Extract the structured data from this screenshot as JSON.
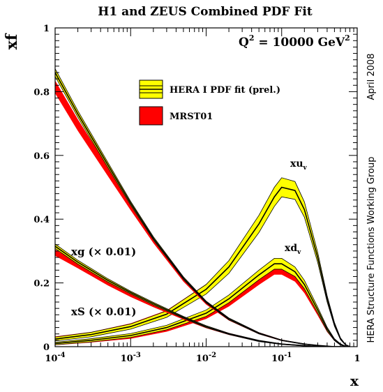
{
  "chart_data": {
    "type": "line",
    "title": "H1 and ZEUS Combined PDF Fit",
    "xlabel": "x",
    "ylabel": "xf",
    "xscale": "log",
    "xlim": [
      0.0001,
      1
    ],
    "ylim": [
      0,
      1
    ],
    "x_ticks": [
      {
        "value": 0.0001,
        "base": "10",
        "exp": "-4"
      },
      {
        "value": 0.001,
        "base": "10",
        "exp": "-3"
      },
      {
        "value": 0.01,
        "base": "10",
        "exp": "-2"
      },
      {
        "value": 0.1,
        "base": "10",
        "exp": "-1"
      },
      {
        "value": 1,
        "base": "1",
        "exp": ""
      }
    ],
    "y_ticks": [
      "0",
      "0.2",
      "0.4",
      "0.6",
      "0.8",
      "1"
    ],
    "y_tick_values": [
      0,
      0.2,
      0.4,
      0.6,
      0.8,
      1
    ],
    "annotation_q2": {
      "prefix": "Q",
      "sup1": "2",
      "mid": " = 10000 GeV",
      "sup2": "2"
    },
    "legend": {
      "placement": "upper-center",
      "entries": [
        {
          "label": "HERA I PDF fit (prel.)",
          "color": "#ffff00"
        },
        {
          "label": "MRST01",
          "color": "#ff0000"
        }
      ]
    },
    "curve_labels": {
      "xuv": {
        "base": "xu",
        "sub": "v"
      },
      "xdv": {
        "base": "xd",
        "sub": "v"
      },
      "xg": "xg (× 0.01)",
      "xS": "xS (× 0.01)"
    },
    "side_texts": {
      "date": "April 2008",
      "group": "HERA Structure Functions Working Group"
    },
    "colors": {
      "hera_band": "#ffff00",
      "mrst_band": "#ff0000",
      "line": "#000000"
    },
    "series": [
      {
        "name": "xuv",
        "x": [
          0.0001,
          0.0003,
          0.001,
          0.003,
          0.01,
          0.02,
          0.05,
          0.08,
          0.1,
          0.15,
          0.2,
          0.3,
          0.4,
          0.5,
          0.6,
          0.7,
          0.8
        ],
        "hera_central": [
          0.024,
          0.038,
          0.063,
          0.102,
          0.18,
          0.25,
          0.385,
          0.47,
          0.5,
          0.49,
          0.43,
          0.28,
          0.15,
          0.07,
          0.025,
          0.006,
          0.0
        ],
        "hera_halfwidth": [
          0.006,
          0.007,
          0.008,
          0.01,
          0.015,
          0.02,
          0.027,
          0.03,
          0.03,
          0.028,
          0.024,
          0.016,
          0.01,
          0.006,
          0.003,
          0.001,
          0.0
        ],
        "mrst_central": [
          0.028,
          0.042,
          0.068,
          0.108,
          0.188,
          0.26,
          0.398,
          0.48,
          0.508,
          0.498,
          0.438,
          0.285,
          0.152,
          0.07,
          0.025,
          0.006,
          0.0
        ],
        "mrst_halfwidth": [
          0.004,
          0.004,
          0.005,
          0.006,
          0.008,
          0.009,
          0.01,
          0.011,
          0.011,
          0.01,
          0.009,
          0.007,
          0.005,
          0.003,
          0.002,
          0.001,
          0.0
        ]
      },
      {
        "name": "xdv",
        "x": [
          0.0001,
          0.0003,
          0.001,
          0.003,
          0.01,
          0.02,
          0.05,
          0.08,
          0.1,
          0.15,
          0.2,
          0.3,
          0.4,
          0.5,
          0.6,
          0.7,
          0.8
        ],
        "hera_central": [
          0.01,
          0.02,
          0.035,
          0.06,
          0.105,
          0.15,
          0.225,
          0.26,
          0.26,
          0.235,
          0.195,
          0.115,
          0.055,
          0.022,
          0.007,
          0.001,
          0.0
        ],
        "hera_halfwidth": [
          0.004,
          0.005,
          0.006,
          0.007,
          0.01,
          0.012,
          0.015,
          0.017,
          0.017,
          0.015,
          0.013,
          0.009,
          0.006,
          0.003,
          0.002,
          0.001,
          0.0
        ],
        "mrst_central": [
          0.008,
          0.017,
          0.03,
          0.053,
          0.095,
          0.135,
          0.205,
          0.238,
          0.238,
          0.215,
          0.178,
          0.105,
          0.05,
          0.02,
          0.006,
          0.001,
          0.0
        ],
        "mrst_halfwidth": [
          0.003,
          0.004,
          0.005,
          0.006,
          0.008,
          0.009,
          0.011,
          0.012,
          0.012,
          0.011,
          0.01,
          0.007,
          0.004,
          0.002,
          0.001,
          0.0,
          0.0
        ]
      },
      {
        "name": "xg",
        "x": [
          0.0001,
          0.0002,
          0.0005,
          0.001,
          0.002,
          0.005,
          0.01,
          0.02,
          0.05,
          0.1,
          0.2,
          0.3,
          0.5,
          0.7
        ],
        "hera_central": [
          0.315,
          0.265,
          0.208,
          0.17,
          0.135,
          0.092,
          0.063,
          0.04,
          0.018,
          0.008,
          0.003,
          0.001,
          0.0,
          0.0
        ],
        "hera_halfwidth": [
          0.007,
          0.006,
          0.005,
          0.004,
          0.004,
          0.003,
          0.003,
          0.002,
          0.002,
          0.001,
          0.001,
          0.0,
          0.0,
          0.0
        ],
        "mrst_central": [
          0.295,
          0.255,
          0.2,
          0.163,
          0.13,
          0.09,
          0.062,
          0.04,
          0.018,
          0.008,
          0.003,
          0.001,
          0.0,
          0.0
        ],
        "mrst_halfwidth": [
          0.01,
          0.009,
          0.008,
          0.007,
          0.006,
          0.005,
          0.004,
          0.003,
          0.002,
          0.001,
          0.001,
          0.0,
          0.0,
          0.0
        ]
      },
      {
        "name": "xS",
        "x": [
          0.0001,
          0.0002,
          0.0005,
          0.001,
          0.002,
          0.005,
          0.01,
          0.02,
          0.05,
          0.1,
          0.2,
          0.3,
          0.5,
          0.7
        ],
        "hera_central": [
          0.86,
          0.73,
          0.57,
          0.45,
          0.34,
          0.215,
          0.14,
          0.087,
          0.042,
          0.02,
          0.008,
          0.004,
          0.0,
          0.0
        ],
        "hera_halfwidth": [
          0.012,
          0.01,
          0.008,
          0.006,
          0.005,
          0.004,
          0.003,
          0.003,
          0.002,
          0.001,
          0.001,
          0.0,
          0.0,
          0.0
        ],
        "mrst_central": [
          0.815,
          0.695,
          0.55,
          0.44,
          0.335,
          0.212,
          0.138,
          0.086,
          0.042,
          0.02,
          0.008,
          0.004,
          0.0,
          0.0
        ],
        "mrst_halfwidth": [
          0.02,
          0.018,
          0.015,
          0.012,
          0.01,
          0.008,
          0.006,
          0.004,
          0.003,
          0.002,
          0.001,
          0.0,
          0.0,
          0.0
        ]
      }
    ]
  }
}
